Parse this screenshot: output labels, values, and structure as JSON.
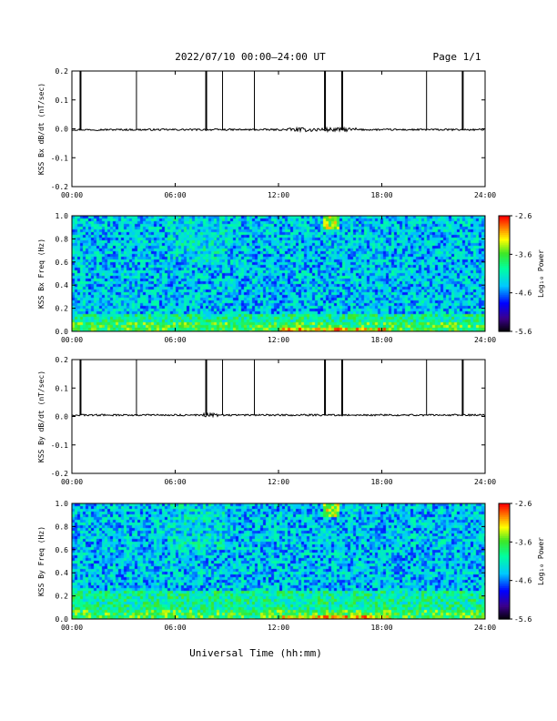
{
  "header": {
    "date_range": "2022/07/10  00:00–24:00 UT",
    "page": "Page 1/1"
  },
  "xaxis": {
    "label": "Universal Time (hh:mm)",
    "ticks": [
      "00:00",
      "06:00",
      "12:00",
      "18:00",
      "24:00"
    ]
  },
  "colorbar": {
    "label": "Log₁₀ Power",
    "ticks": [
      "-2.6",
      "-3.6",
      "-4.6",
      "-5.6"
    ]
  },
  "chart_data": [
    {
      "type": "line",
      "ylabel": "KSS Bx dB/dt (nT/sec)",
      "xlim": [
        0,
        24
      ],
      "ylim": [
        -0.2,
        0.2
      ],
      "yticks": [
        "0.2",
        "0.1",
        "0.0",
        "-0.1",
        "-0.2"
      ],
      "baseline": -0.003,
      "spikes_hours": [
        0.5,
        3.75,
        7.8,
        8.75,
        10.6,
        14.7,
        15.7,
        20.6,
        22.7
      ],
      "spike_peak": 0.2,
      "noisy_interval_hours": [
        12.5,
        16.5
      ]
    },
    {
      "type": "heatmap",
      "ylabel": "KSS Bx Freq (Hz)",
      "xlim": [
        0,
        24
      ],
      "ylim": [
        0.0,
        1.0
      ],
      "yticks": [
        "1.0",
        "0.8",
        "0.6",
        "0.4",
        "0.2",
        "0.0"
      ],
      "zlim": [
        -5.6,
        -2.6
      ],
      "notes": "broadband -4 to -4.6 background; enhanced power below 0.15 Hz; strongest 0.0-0.05 Hz between 12:00 and 18:00"
    },
    {
      "type": "line",
      "ylabel": "KSS By dB/dt (nT/sec)",
      "xlim": [
        0,
        24
      ],
      "ylim": [
        -0.2,
        0.2
      ],
      "yticks": [
        "0.2",
        "0.1",
        "0.0",
        "-0.1",
        "-0.2"
      ],
      "baseline": 0.005,
      "spikes_hours": [
        0.5,
        3.75,
        7.8,
        8.75,
        10.6,
        14.7,
        15.7,
        20.6,
        22.7
      ],
      "spike_peak": 0.2,
      "noisy_interval_hours": [
        7.5,
        8.5
      ]
    },
    {
      "type": "heatmap",
      "ylabel": "KSS By Freq (Hz)",
      "xlim": [
        0,
        24
      ],
      "ylim": [
        0.0,
        1.0
      ],
      "yticks": [
        "1.0",
        "0.8",
        "0.6",
        "0.4",
        "0.2",
        "0.0"
      ],
      "zlim": [
        -5.6,
        -2.6
      ],
      "notes": "enhanced power below 0.25 Hz; strongest 0.0-0.05 Hz between 12:00 and 18:00"
    }
  ]
}
